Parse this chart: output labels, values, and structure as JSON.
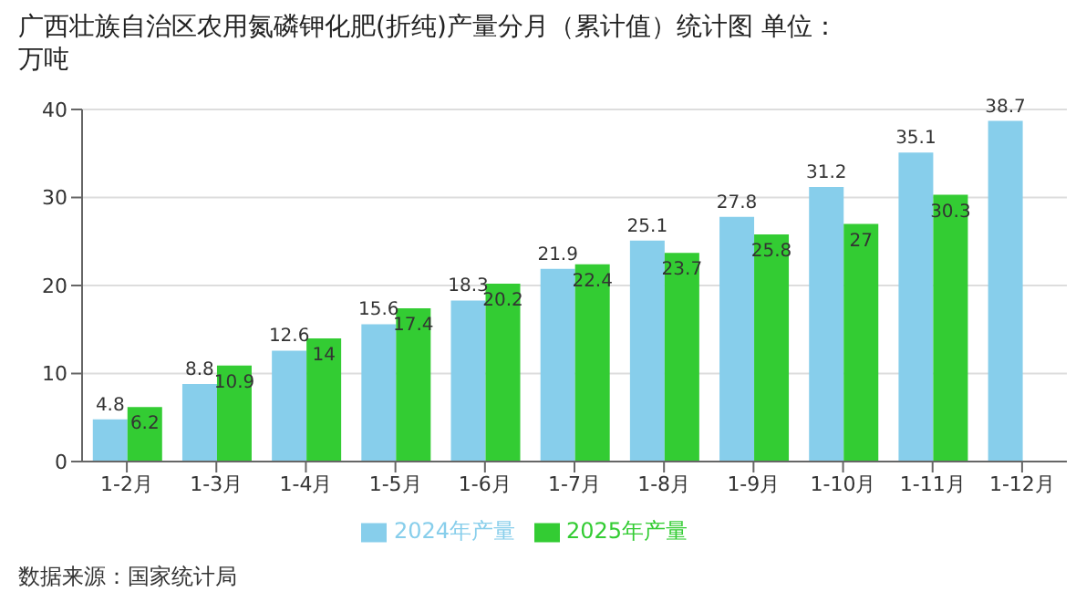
{
  "chart_data": {
    "type": "bar",
    "title": "广西壮族自治区农用氮磷钾化肥(折纯)产量分月（累计值）统计图 单位：万吨",
    "categories": [
      "1-2月",
      "1-3月",
      "1-4月",
      "1-5月",
      "1-6月",
      "1-7月",
      "1-8月",
      "1-9月",
      "1-10月",
      "1-11月",
      "1-12月"
    ],
    "series": [
      {
        "name": "2024年产量",
        "color": "#87ceeb",
        "values": [
          4.8,
          8.8,
          12.6,
          15.6,
          18.3,
          21.9,
          25.1,
          27.8,
          31.2,
          35.1,
          38.7
        ]
      },
      {
        "name": "2025年产量",
        "color": "#33cc33",
        "values": [
          6.2,
          10.9,
          14,
          17.4,
          20.2,
          22.4,
          23.7,
          25.8,
          27,
          30.3,
          null
        ]
      }
    ],
    "ylim": [
      0,
      40
    ],
    "yticks": [
      0,
      10,
      20,
      30,
      40
    ],
    "grid": "y",
    "legend": "bottom",
    "data_labels": true,
    "annotations": [
      "数据来源：国家统计局"
    ]
  }
}
